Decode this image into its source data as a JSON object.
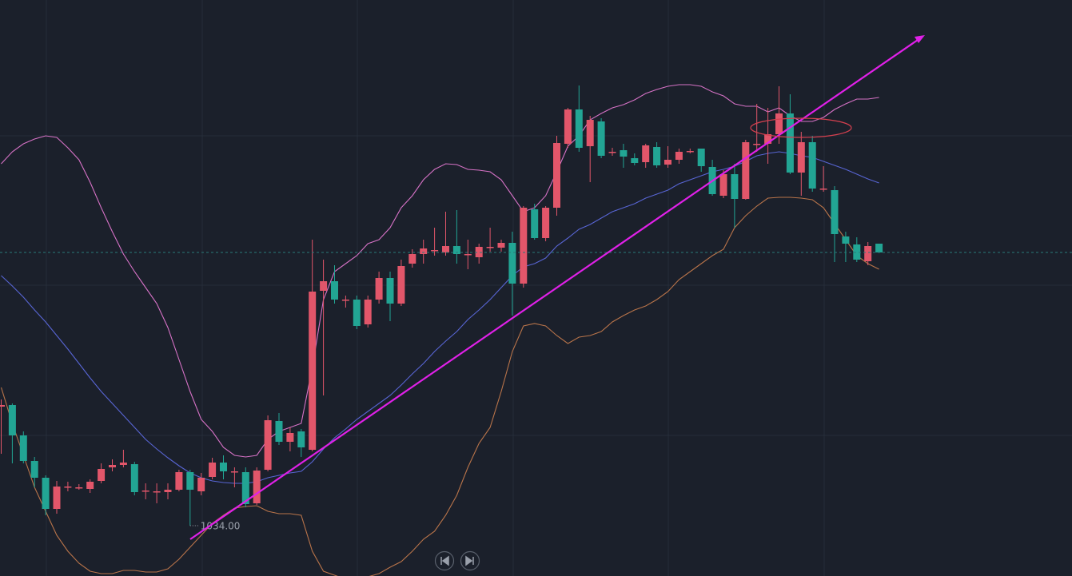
{
  "chart_data": {
    "type": "candlestick",
    "open": [
      1183,
      1185,
      1147,
      1115,
      1094,
      1055,
      1083,
      1082,
      1080,
      1090,
      1107,
      1110,
      1111,
      1078,
      1077,
      1076,
      1079,
      1101,
      1077,
      1095,
      1113,
      1102,
      1101,
      1062,
      1104,
      1165,
      1139,
      1152,
      1129,
      1328,
      1340,
      1317,
      1317,
      1286,
      1317,
      1344,
      1312,
      1362,
      1374,
      1379,
      1376,
      1384,
      1374,
      1370,
      1383,
      1382,
      1388,
      1337,
      1430,
      1394,
      1432,
      1512,
      1555,
      1509,
      1540,
      1502,
      1504,
      1494,
      1489,
      1508,
      1486,
      1492,
      1503,
      1506,
      1483,
      1447,
      1474,
      1443,
      1512,
      1512,
      1524,
      1550,
      1476,
      1514,
      1456,
      1454,
      1396,
      1386,
      1365,
      1387
    ],
    "high": [
      1192,
      1187,
      1152,
      1120,
      1097,
      1090,
      1089,
      1086,
      1092,
      1112,
      1117,
      1129,
      1114,
      1087,
      1087,
      1087,
      1104,
      1104,
      1100,
      1119,
      1122,
      1107,
      1107,
      1107,
      1172,
      1175,
      1157,
      1155,
      1392,
      1367,
      1360,
      1322,
      1322,
      1322,
      1352,
      1352,
      1367,
      1380,
      1392,
      1407,
      1427,
      1429,
      1392,
      1387,
      1407,
      1392,
      1402,
      1434,
      1437,
      1434,
      1522,
      1557,
      1585,
      1547,
      1544,
      1507,
      1512,
      1500,
      1512,
      1514,
      1509,
      1506,
      1506,
      1506,
      1492,
      1479,
      1487,
      1517,
      1562,
      1557,
      1584,
      1574,
      1527,
      1522,
      1484,
      1459,
      1402,
      1395,
      1389,
      1387
    ],
    "low": [
      1124,
      1112,
      1112,
      1082,
      1047,
      1049,
      1077,
      1079,
      1075,
      1087,
      1102,
      1107,
      1072,
      1067,
      1062,
      1067,
      1077,
      1034,
      1072,
      1092,
      1092,
      1082,
      1057,
      1060,
      1102,
      1135,
      1127,
      1120,
      1127,
      1197,
      1312,
      1307,
      1280,
      1282,
      1312,
      1290,
      1309,
      1357,
      1362,
      1372,
      1372,
      1362,
      1355,
      1362,
      1377,
      1377,
      1297,
      1332,
      1392,
      1390,
      1422,
      1507,
      1502,
      1464,
      1494,
      1497,
      1482,
      1485,
      1482,
      1482,
      1482,
      1487,
      1500,
      1477,
      1447,
      1444,
      1407,
      1442,
      1502,
      1487,
      1512,
      1474,
      1447,
      1452,
      1452,
      1364,
      1364,
      1364,
      1360,
      1376
    ],
    "close": [
      1185,
      1147,
      1115,
      1094,
      1055,
      1083,
      1083,
      1082,
      1089,
      1105,
      1110,
      1113,
      1076,
      1078,
      1077,
      1079,
      1101,
      1079,
      1094,
      1113,
      1102,
      1102,
      1061,
      1103,
      1166,
      1139,
      1150,
      1132,
      1327,
      1340,
      1317,
      1317,
      1284,
      1317,
      1344,
      1312,
      1359,
      1374,
      1381,
      1379,
      1384,
      1374,
      1374,
      1383,
      1383,
      1388,
      1337,
      1432,
      1394,
      1432,
      1513,
      1555,
      1507,
      1542,
      1497,
      1502,
      1496,
      1488,
      1510,
      1485,
      1492,
      1502,
      1503,
      1484,
      1449,
      1474,
      1443,
      1514,
      1512,
      1524,
      1550,
      1476,
      1514,
      1456,
      1456,
      1399,
      1387,
      1367,
      1384,
      1376
    ],
    "up_color": "#e2566a",
    "down_color": "#22a594",
    "bands": [
      {
        "color": "#d672c6",
        "values": [
          1487,
          1502,
          1512,
          1518,
          1522,
          1520,
          1507,
          1492,
          1464,
          1432,
          1402,
          1374,
          1352,
          1332,
          1312,
          1282,
          1242,
          1202,
          1167,
          1152,
          1132,
          1122,
          1120,
          1122,
          1142,
          1152,
          1157,
          1162,
          1232,
          1317,
          1352,
          1362,
          1372,
          1387,
          1392,
          1407,
          1432,
          1447,
          1467,
          1480,
          1487,
          1486,
          1480,
          1479,
          1477,
          1467,
          1447,
          1427,
          1432,
          1447,
          1477,
          1509,
          1522,
          1542,
          1550,
          1557,
          1561,
          1567,
          1575,
          1580,
          1584,
          1586,
          1586,
          1584,
          1577,
          1572,
          1562,
          1559,
          1559,
          1552,
          1557,
          1547,
          1540,
          1540,
          1545,
          1555,
          1562,
          1568,
          1568,
          1570
        ]
      },
      {
        "color": "#5865d4",
        "values": [
          1347,
          1334,
          1320,
          1304,
          1289,
          1272,
          1255,
          1237,
          1219,
          1202,
          1187,
          1172,
          1157,
          1142,
          1130,
          1119,
          1109,
          1100,
          1094,
          1090,
          1088,
          1087,
          1087,
          1089,
          1094,
          1097,
          1100,
          1102,
          1114,
          1130,
          1144,
          1155,
          1167,
          1177,
          1187,
          1197,
          1210,
          1224,
          1237,
          1252,
          1265,
          1277,
          1292,
          1304,
          1317,
          1332,
          1347,
          1358,
          1362,
          1369,
          1384,
          1394,
          1405,
          1411,
          1419,
          1427,
          1432,
          1437,
          1444,
          1449,
          1454,
          1462,
          1467,
          1472,
          1477,
          1480,
          1484,
          1490,
          1497,
          1500,
          1502,
          1500,
          1497,
          1495,
          1490,
          1485,
          1480,
          1474,
          1468,
          1463
        ]
      },
      {
        "color": "#b9744a",
        "values": [
          1207,
          1162,
          1122,
          1082,
          1052,
          1022,
          1002,
          987,
          977,
          974,
          974,
          978,
          978,
          976,
          976,
          980,
          992,
          1007,
          1022,
          1037,
          1047,
          1056,
          1058,
          1059,
          1052,
          1049,
          1049,
          1047,
          1002,
          977,
          972,
          967,
          964,
          970,
          974,
          982,
          989,
          1002,
          1017,
          1027,
          1047,
          1072,
          1107,
          1137,
          1157,
          1202,
          1252,
          1284,
          1287,
          1284,
          1272,
          1262,
          1270,
          1272,
          1277,
          1289,
          1297,
          1304,
          1309,
          1317,
          1327,
          1342,
          1352,
          1362,
          1372,
          1380,
          1407,
          1422,
          1434,
          1444,
          1445,
          1445,
          1444,
          1442,
          1432,
          1412,
          1392,
          1372,
          1362,
          1355
        ]
      }
    ],
    "ylim": [
      971,
      1692
    ],
    "low_label": "1034.00"
  }
}
